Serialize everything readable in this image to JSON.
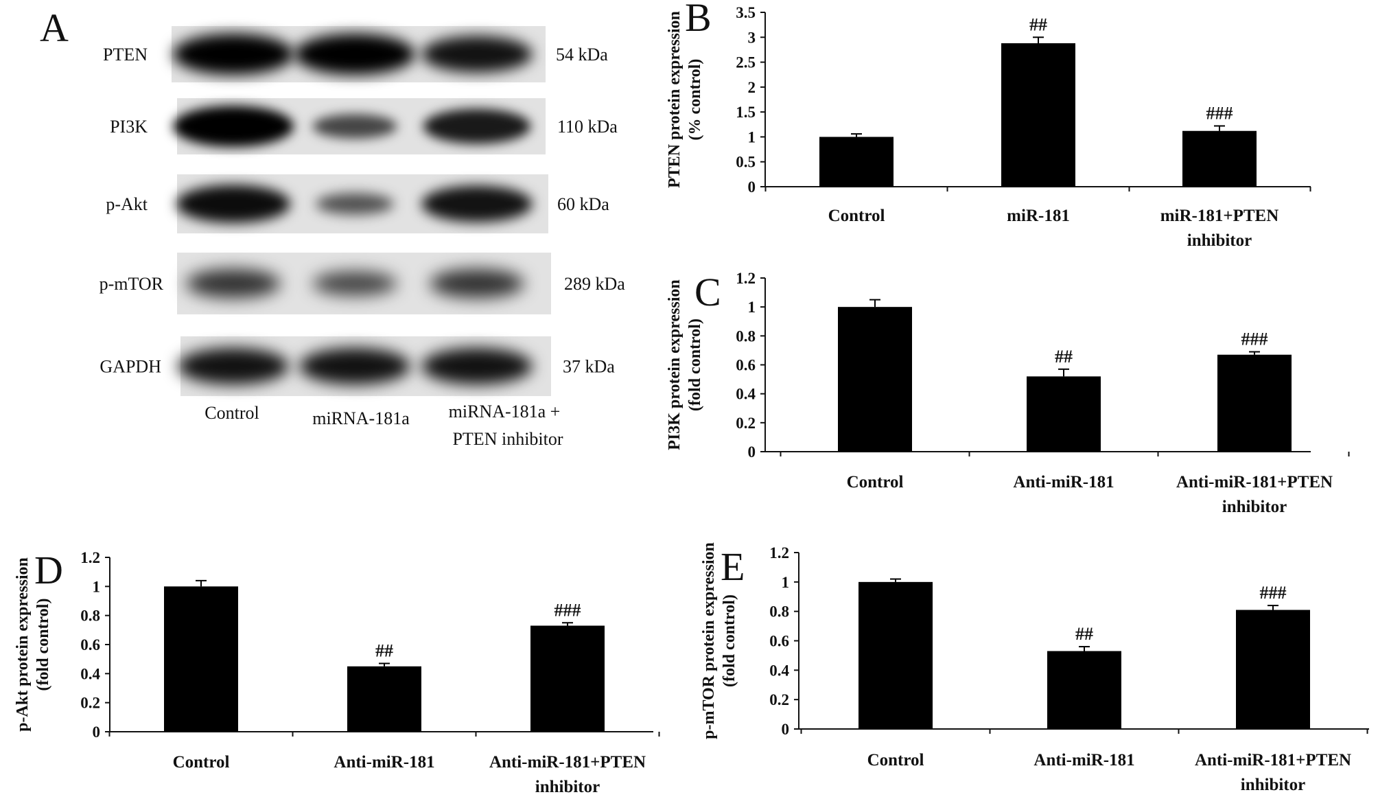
{
  "blot": {
    "panel_label": "A",
    "rows": [
      {
        "protein": "PTEN",
        "size": "54 kDa",
        "bands": [
          1.0,
          1.0,
          0.85
        ],
        "blur": 10
      },
      {
        "protein": "PI3K",
        "size": "110 kDa",
        "bands": [
          1.0,
          0.45,
          0.8
        ],
        "blur": 8
      },
      {
        "protein": "p-Akt",
        "size": "60 kDa",
        "bands": [
          0.9,
          0.35,
          0.85
        ],
        "blur": 9
      },
      {
        "protein": "p-mTOR",
        "size": "289 kDa",
        "bands": [
          0.6,
          0.45,
          0.6
        ],
        "blur": 12
      },
      {
        "protein": "GAPDH",
        "size": "37 kDa",
        "bands": [
          0.85,
          0.85,
          0.85
        ],
        "blur": 11
      }
    ],
    "lanes": [
      "Control",
      "miRNA-181a",
      "miRNA-181a +",
      "PTEN inhibitor"
    ]
  },
  "chart_data": [
    {
      "panel": "B",
      "type": "bar",
      "ylabel": [
        "PTEN protein expression",
        "(% control)"
      ],
      "ylim": [
        0,
        3.5
      ],
      "yticks": [
        "0",
        "0.5",
        "1",
        "1.5",
        "2",
        "2.5",
        "3",
        "3.5"
      ],
      "categories": [
        [
          "Control"
        ],
        [
          "miR-181"
        ],
        [
          "miR-181+PTEN",
          "inhibitor"
        ]
      ],
      "values": [
        1.0,
        2.88,
        1.12
      ],
      "errors": [
        0.06,
        0.12,
        0.1
      ],
      "annotations": [
        "",
        "##",
        "###"
      ]
    },
    {
      "panel": "C",
      "type": "bar",
      "ylabel": [
        "PI3K protein expression",
        "(fold control)"
      ],
      "ylim": [
        0,
        1.2
      ],
      "yticks": [
        "0",
        "0.2",
        "0.4",
        "0.6",
        "0.8",
        "1",
        "1.2"
      ],
      "categories": [
        [
          "Control"
        ],
        [
          "Anti-miR-181"
        ],
        [
          "Anti-miR-181+PTEN",
          "inhibitor"
        ]
      ],
      "values": [
        1.0,
        0.52,
        0.67
      ],
      "errors": [
        0.05,
        0.05,
        0.02
      ],
      "annotations": [
        "",
        "##",
        "###"
      ]
    },
    {
      "panel": "D",
      "type": "bar",
      "ylabel": [
        "p-Akt protein expression",
        "(fold control)"
      ],
      "ylim": [
        0,
        1.2
      ],
      "yticks": [
        "0",
        "0.2",
        "0.4",
        "0.6",
        "0.8",
        "1",
        "1.2"
      ],
      "categories": [
        [
          "Control"
        ],
        [
          "Anti-miR-181"
        ],
        [
          "Anti-miR-181+PTEN",
          "inhibitor"
        ]
      ],
      "values": [
        1.0,
        0.45,
        0.73
      ],
      "errors": [
        0.04,
        0.02,
        0.02
      ],
      "annotations": [
        "",
        "##",
        "###"
      ]
    },
    {
      "panel": "E",
      "type": "bar",
      "ylabel": [
        "p-mTOR protein expression",
        "(fold control)"
      ],
      "ylim": [
        0,
        1.2
      ],
      "yticks": [
        "0",
        "0.2",
        "0.4",
        "0.6",
        "0.8",
        "1",
        "1.2"
      ],
      "categories": [
        [
          "Control"
        ],
        [
          "Anti-miR-181"
        ],
        [
          "Anti-miR-181+PTEN",
          "inhibitor"
        ]
      ],
      "values": [
        1.0,
        0.53,
        0.81
      ],
      "errors": [
        0.02,
        0.03,
        0.03
      ],
      "annotations": [
        "",
        "##",
        "###"
      ]
    }
  ]
}
